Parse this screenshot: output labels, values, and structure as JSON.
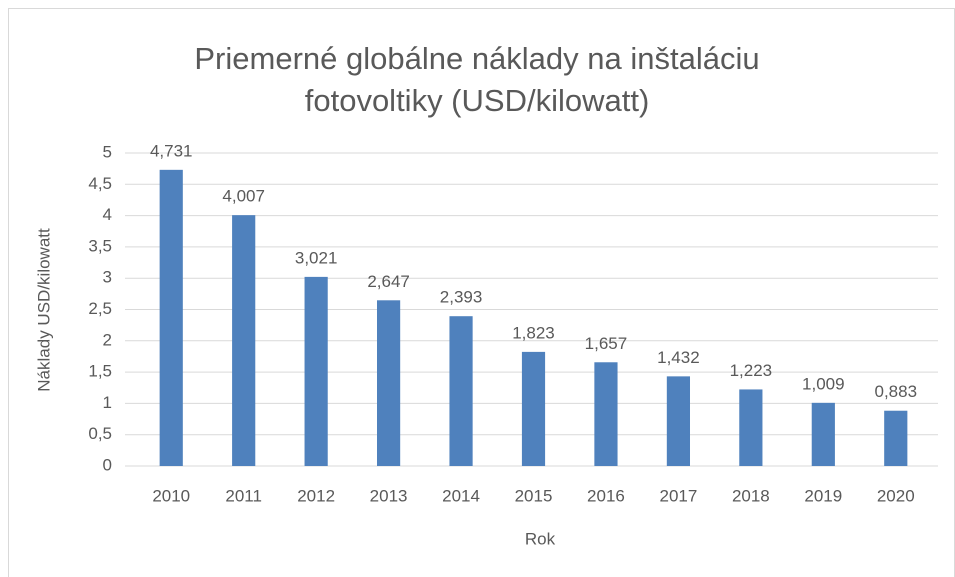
{
  "chart_data": {
    "type": "bar",
    "title": "Priemerné globálne náklady na inštaláciu fotovoltiky (USD/kilowatt)",
    "x_label": "Rok",
    "y_label": "Náklady USD/kilowatt",
    "categories": [
      "2010",
      "2011",
      "2012",
      "2013",
      "2014",
      "2015",
      "2016",
      "2017",
      "2018",
      "2019",
      "2020"
    ],
    "values": [
      4.731,
      4.007,
      3.021,
      2.647,
      2.393,
      1.823,
      1.657,
      1.432,
      1.223,
      1.009,
      0.883
    ],
    "value_labels": [
      "4,731",
      "4,007",
      "3,021",
      "2,647",
      "2,393",
      "1,823",
      "1,657",
      "1,432",
      "1,223",
      "1,009",
      "0,883"
    ],
    "color": "#4f81bd",
    "ylim": [
      0,
      5
    ],
    "yticks": [
      0,
      {
        "value": 0.5,
        "label": "0,5"
      },
      1,
      {
        "value": 1.5,
        "label": "1,5"
      },
      2,
      {
        "value": 2.5,
        "label": "2,5"
      },
      3,
      {
        "value": 3.5,
        "label": "3,5"
      },
      4,
      {
        "value": 4.5,
        "label": "4,5"
      },
      5
    ],
    "grid": true
  }
}
